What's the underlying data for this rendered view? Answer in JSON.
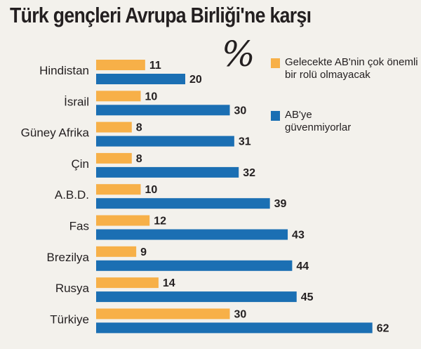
{
  "chart_data": {
    "type": "bar",
    "orientation": "horizontal",
    "title": "Türk gençleri Avrupa Birliği'ne karşı",
    "unit_symbol": "%",
    "categories": [
      "Hindistan",
      "İsrail",
      "Güney Afrika",
      "Çin",
      "A.B.D.",
      "Fas",
      "Brezilya",
      "Rusya",
      "Türkiye"
    ],
    "series": [
      {
        "name": "Gelecekte AB'nin çok önemli bir rolü olmayacak",
        "color": "#f7b048",
        "values": [
          11,
          10,
          8,
          8,
          10,
          12,
          9,
          14,
          30
        ]
      },
      {
        "name": "AB'ye güvenmiyorlar",
        "color": "#1b6fb3",
        "values": [
          20,
          30,
          31,
          32,
          39,
          43,
          44,
          45,
          62
        ]
      }
    ],
    "legend_placement": "top-right",
    "grid": false,
    "xlim": [
      0,
      62
    ]
  },
  "legend": {
    "orange_label": "Gelecekte AB'nin çok önemli bir rolü olmayacak",
    "blue_label": "AB'ye güvenmiyorlar"
  }
}
